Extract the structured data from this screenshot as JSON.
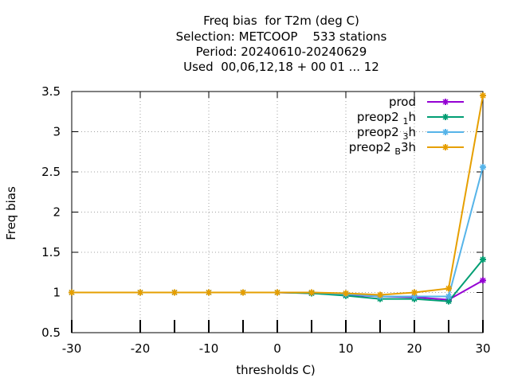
{
  "chart_data": {
    "type": "line",
    "title_lines": [
      "Freq bias  for T2m (deg C)",
      "Selection: METCOOP    533 stations",
      "Period: 20240610-20240629",
      "Used  00,06,12,18 + 00 01 ... 12"
    ],
    "xlabel": "thresholds C)",
    "ylabel": "Freq bias",
    "xlim": [
      -30,
      30
    ],
    "ylim": [
      0.5,
      3.5
    ],
    "xticks": [
      -30,
      -20,
      -10,
      0,
      10,
      20,
      30
    ],
    "yticks": [
      0.5,
      1,
      1.5,
      2,
      2.5,
      3,
      3.5
    ],
    "xtick_labels": [
      "-30",
      "-20",
      "-10",
      "0",
      "10",
      "20",
      "30"
    ],
    "ytick_labels": [
      "0.5",
      "1",
      "1.5",
      "2",
      "2.5",
      "3",
      "3.5"
    ],
    "grid": true,
    "legend_position": "top-right",
    "x": [
      -30,
      -20,
      -15,
      -10,
      -5,
      0,
      5,
      10,
      15,
      20,
      25,
      30
    ],
    "series": [
      {
        "name": "prod",
        "label_main": "prod",
        "label_sub": "",
        "label_tail": "",
        "color": "#9400d3",
        "values": [
          1.0,
          1.0,
          1.0,
          1.0,
          1.0,
          1.0,
          0.99,
          0.97,
          0.95,
          0.94,
          0.91,
          1.15
        ]
      },
      {
        "name": "preop2_1h",
        "label_main": "preop2 ",
        "label_sub": "1",
        "label_tail": "h",
        "color": "#009e73",
        "values": [
          1.0,
          1.0,
          1.0,
          1.0,
          1.0,
          1.0,
          0.99,
          0.96,
          0.92,
          0.92,
          0.89,
          1.41
        ]
      },
      {
        "name": "preop2_3h",
        "label_main": "preop2 ",
        "label_sub": "3",
        "label_tail": "h",
        "color": "#56b4e9",
        "values": [
          1.0,
          1.0,
          1.0,
          1.0,
          1.0,
          1.0,
          1.0,
          0.98,
          0.95,
          0.95,
          0.95,
          2.56
        ]
      },
      {
        "name": "preop2_B3h",
        "label_main": "preop2 ",
        "label_sub": "B",
        "label_tail": "3h",
        "color": "#e69f00",
        "values": [
          1.0,
          1.0,
          1.0,
          1.0,
          1.0,
          1.0,
          1.0,
          0.99,
          0.97,
          1.0,
          1.05,
          3.45
        ]
      }
    ]
  }
}
